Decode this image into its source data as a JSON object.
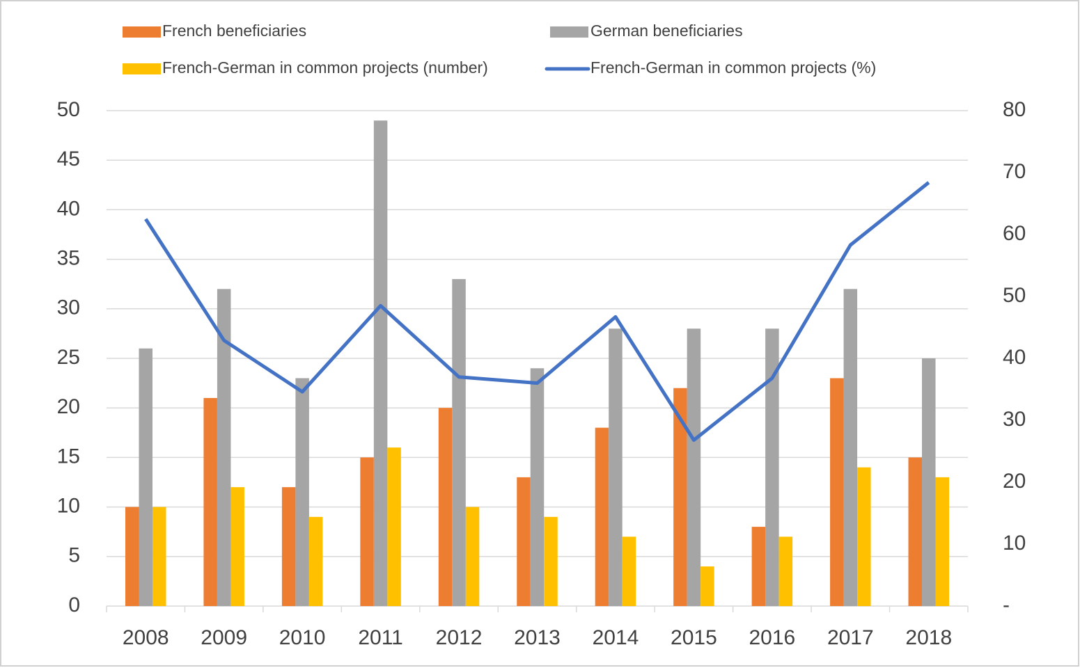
{
  "chart_data": {
    "type": "bar_line",
    "categories": [
      "2008",
      "2009",
      "2010",
      "2011",
      "2012",
      "2013",
      "2014",
      "2015",
      "2016",
      "2017",
      "2018"
    ],
    "series": [
      {
        "name": "French beneficiaries",
        "color": "#ed7d31",
        "type": "bar",
        "values": [
          10,
          21,
          12,
          15,
          20,
          13,
          18,
          22,
          8,
          23,
          15
        ]
      },
      {
        "name": "German beneficiaries",
        "color": "#a5a5a5",
        "type": "bar",
        "values": [
          26,
          32,
          23,
          49,
          33,
          24,
          28,
          28,
          28,
          32,
          25
        ]
      },
      {
        "name": "French-German in common projects (number)",
        "color": "#ffc000",
        "type": "bar",
        "values": [
          10,
          12,
          9,
          16,
          10,
          9,
          7,
          4,
          7,
          14,
          13
        ]
      },
      {
        "name": "French-German in common projects (%)",
        "color": "#4472c4",
        "type": "line",
        "axis": "y2",
        "values": [
          62.5,
          42.9,
          34.6,
          48.5,
          37,
          36,
          46.7,
          26.8,
          36.8,
          58.3,
          68.4
        ]
      }
    ],
    "ylim": [
      0,
      50
    ],
    "yticks": [
      0,
      5,
      10,
      15,
      20,
      25,
      30,
      35,
      40,
      45,
      50
    ],
    "y2lim": [
      0,
      80
    ],
    "y2ticks": [
      {
        "value": 0,
        "label": "-"
      },
      10,
      20,
      30,
      40,
      50,
      60,
      70,
      80
    ],
    "grid": true,
    "legend": "top"
  }
}
